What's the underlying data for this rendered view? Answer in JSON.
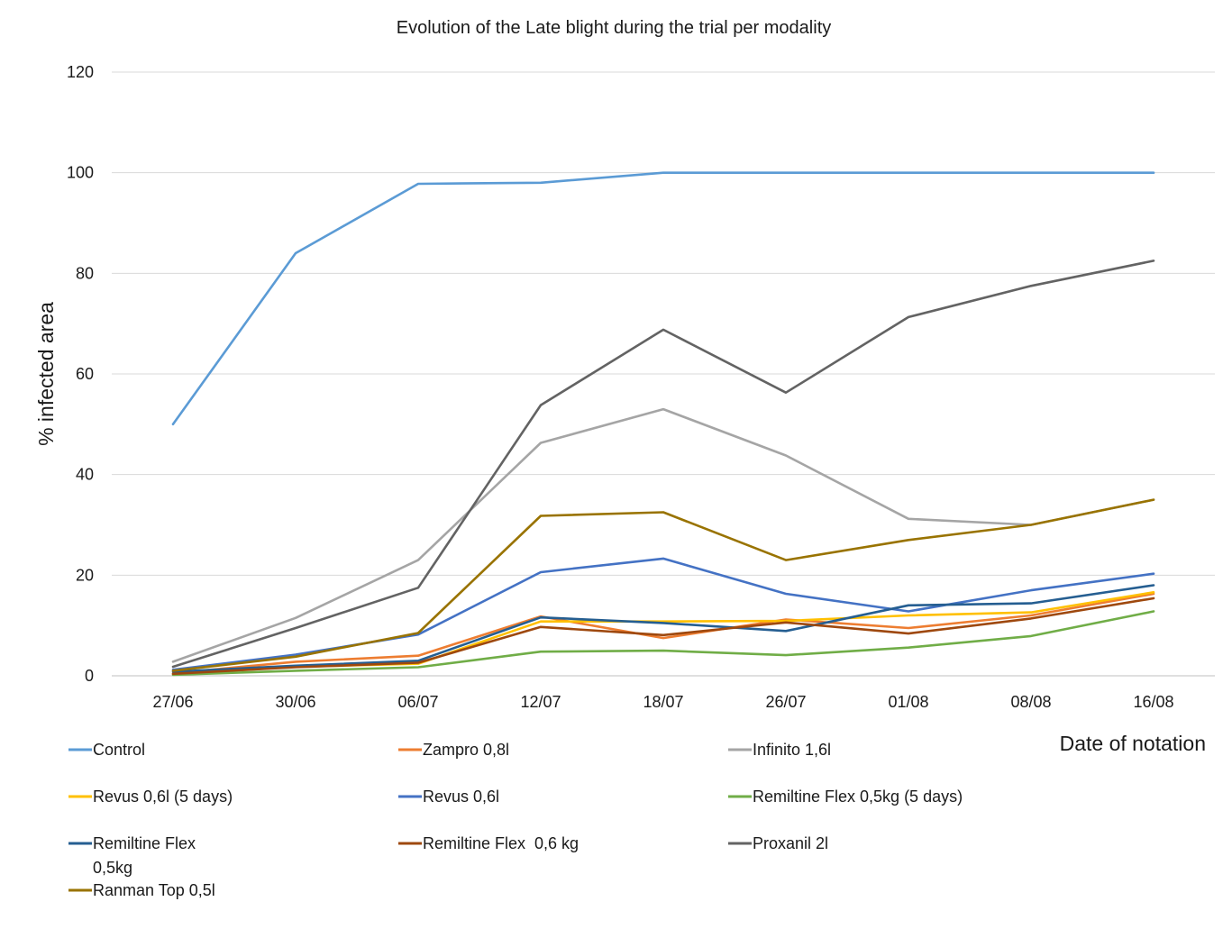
{
  "chart_data": {
    "type": "line",
    "title": "Evolution of the Late blight during the trial per modality",
    "xlabel": "Date of notation",
    "ylabel": "% infected area",
    "categories": [
      "27/06",
      "30/06",
      "06/07",
      "12/07",
      "18/07",
      "26/07",
      "01/08",
      "08/08",
      "16/08"
    ],
    "ylim": [
      0,
      120
    ],
    "yticks": [
      0,
      20,
      40,
      60,
      80,
      100,
      120
    ],
    "grid": true,
    "legend_position": "bottom",
    "series": [
      {
        "name": "Control",
        "color": "#5b9bd5",
        "values": [
          50,
          84,
          97.8,
          98,
          100,
          100,
          100,
          100,
          100
        ]
      },
      {
        "name": "Zampro 0,8l",
        "color": "#ed7d31",
        "values": [
          0.5,
          2.8,
          4,
          11.8,
          7.5,
          11.2,
          9.5,
          12,
          16.3
        ]
      },
      {
        "name": "Infinito 1,6l",
        "color": "#a5a5a5",
        "values": [
          2.8,
          11.5,
          23,
          46.3,
          53,
          43.8,
          31.2,
          30,
          35
        ]
      },
      {
        "name": "Revus 0,6l (5 days)",
        "color": "#ffc000",
        "values": [
          0.3,
          1.8,
          2.4,
          10.8,
          10.8,
          10.9,
          12,
          12.6,
          16.6
        ]
      },
      {
        "name": "Revus 0,6l",
        "color": "#4472c4",
        "values": [
          1.2,
          4.2,
          8.2,
          20.6,
          23.3,
          16.3,
          12.8,
          17,
          20.3
        ]
      },
      {
        "name": "Remiltine Flex 0,5kg (5 days)",
        "color": "#70ad47",
        "values": [
          0.2,
          1,
          1.7,
          4.8,
          5,
          4.1,
          5.6,
          7.9,
          12.8
        ]
      },
      {
        "name": "Remiltine Flex\n0,5kg",
        "color": "#255e91",
        "values": [
          0.8,
          2,
          3,
          11.6,
          10.5,
          8.9,
          14,
          14.4,
          18
        ]
      },
      {
        "name": "Remiltine Flex  0,6 kg",
        "color": "#9e480e",
        "values": [
          0.4,
          1.7,
          2.6,
          9.7,
          8.1,
          10.6,
          8.4,
          11.4,
          15.4
        ]
      },
      {
        "name": "Proxanil 2l",
        "color": "#636363",
        "values": [
          1.8,
          9.5,
          17.5,
          53.8,
          68.8,
          56.3,
          71.3,
          77.5,
          82.5
        ]
      },
      {
        "name": "Ranman Top 0,5l",
        "color": "#997300",
        "values": [
          1,
          3.8,
          8.5,
          31.8,
          32.5,
          23,
          27,
          30,
          35
        ]
      }
    ]
  }
}
